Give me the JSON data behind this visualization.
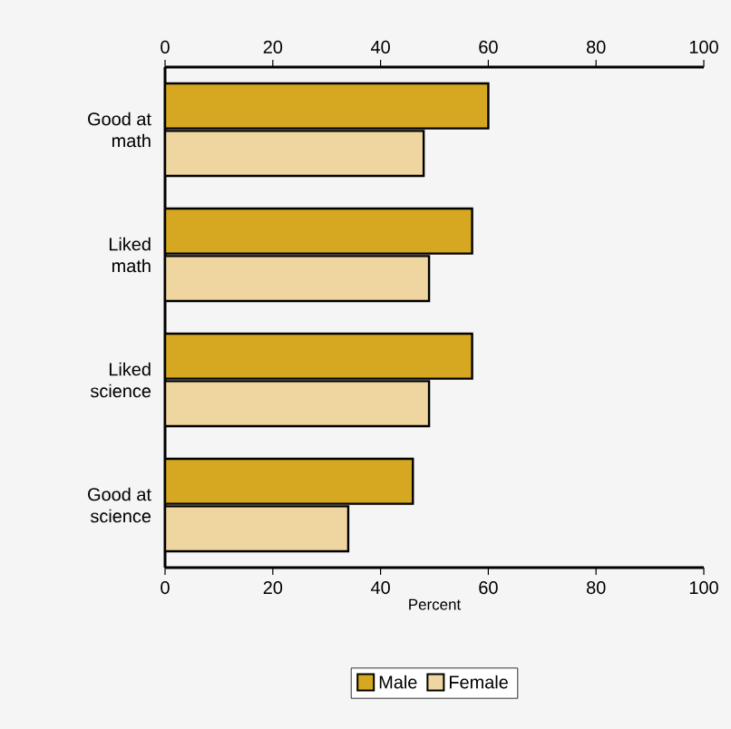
{
  "chart_data": {
    "type": "bar",
    "orientation": "horizontal",
    "categories": [
      "Good at math",
      "Liked math",
      "Liked science",
      "Good at science"
    ],
    "series": [
      {
        "name": "Male",
        "color": "#d6a720",
        "values": [
          60,
          57,
          57,
          46
        ]
      },
      {
        "name": "Female",
        "color": "#efd59f",
        "values": [
          48,
          49,
          49,
          34
        ]
      }
    ],
    "xlim": [
      0,
      100
    ],
    "xticks": [
      0,
      20,
      40,
      60,
      80,
      100
    ],
    "x2lim": [
      0,
      100
    ],
    "x2ticks": [
      0,
      20,
      40,
      60,
      80,
      100
    ],
    "xlabel": "Percent",
    "legend": "bottom"
  }
}
